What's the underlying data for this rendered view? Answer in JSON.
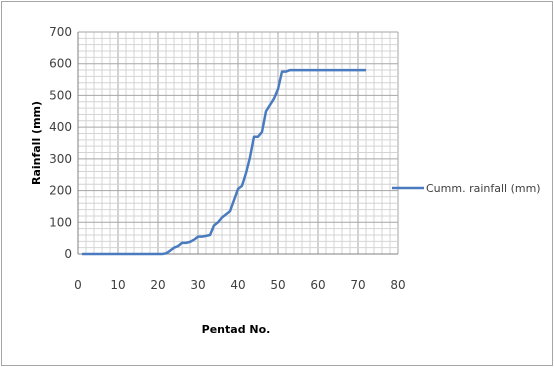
{
  "chart_data": {
    "type": "line",
    "xlabel": "Pentad No.",
    "ylabel": "Rainfall (mm)",
    "xlim": [
      0,
      80
    ],
    "ylim": [
      0,
      700
    ],
    "xticks": [
      "0",
      "10",
      "20",
      "30",
      "40",
      "50",
      "60",
      "70",
      "80"
    ],
    "yticks": [
      "0",
      "100",
      "200",
      "300",
      "400",
      "500",
      "600",
      "700"
    ],
    "grid": true,
    "legend_position": "right",
    "series": [
      {
        "name": "Cumm. rainfall (mm)",
        "color": "#4a7bbf",
        "x": [
          1,
          21,
          22,
          23,
          24,
          25,
          26,
          27,
          28,
          29,
          30,
          31,
          32,
          33,
          34,
          35,
          36,
          37,
          38,
          39,
          40,
          41,
          42,
          43,
          44,
          45,
          46,
          47,
          48,
          49,
          50,
          51,
          52,
          53,
          72
        ],
        "y": [
          0,
          0,
          2,
          10,
          20,
          25,
          35,
          35,
          38,
          45,
          55,
          55,
          57,
          60,
          90,
          100,
          115,
          125,
          135,
          170,
          205,
          215,
          255,
          305,
          370,
          370,
          385,
          450,
          470,
          490,
          520,
          575,
          575,
          580,
          580
        ]
      }
    ]
  }
}
